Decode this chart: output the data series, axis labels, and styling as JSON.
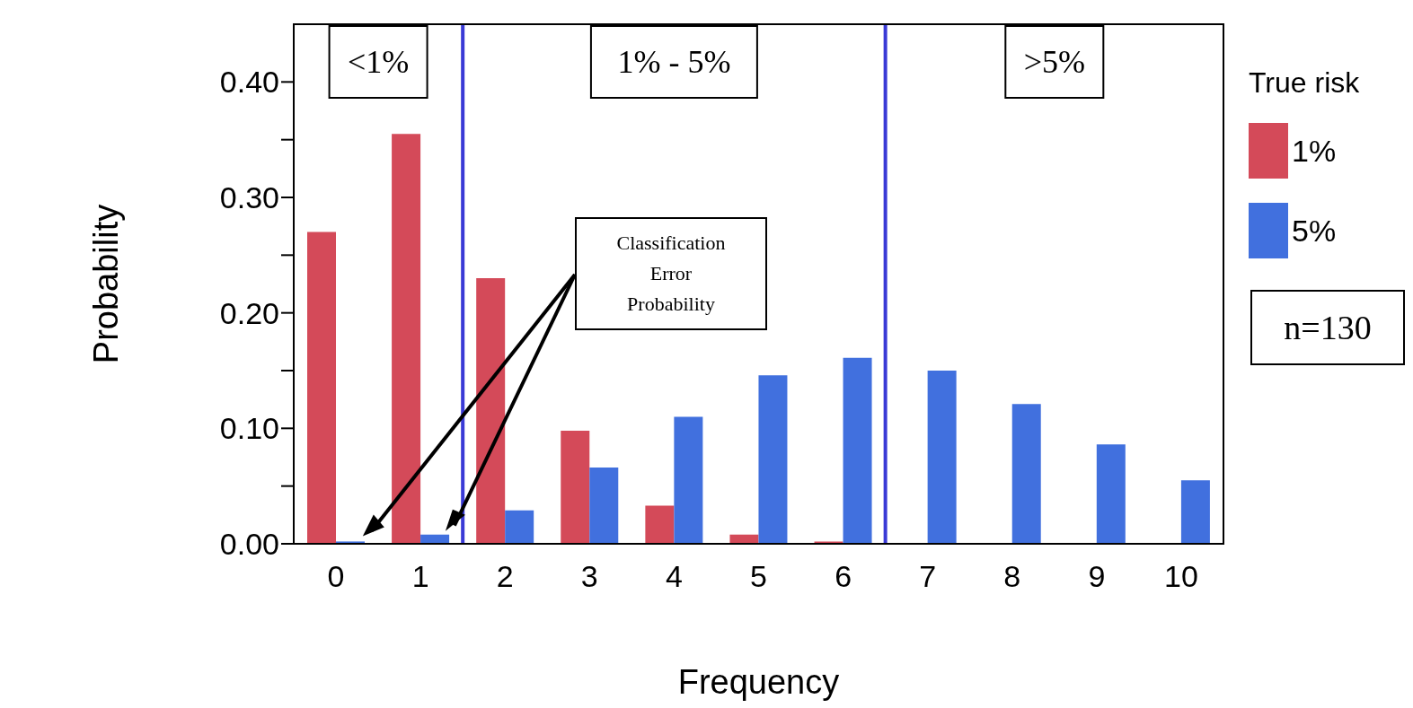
{
  "chart_data": {
    "type": "bar",
    "xlabel": "Frequency",
    "ylabel": "Probability",
    "legend_title": "True risk",
    "legend": "right",
    "x": [
      0,
      1,
      2,
      3,
      4,
      5,
      6,
      7,
      8,
      9,
      10
    ],
    "xlim": [
      -0.5,
      10.5
    ],
    "xticks": [
      0,
      1,
      2,
      3,
      4,
      5,
      6,
      7,
      8,
      9,
      10
    ],
    "ylim": [
      0,
      0.45
    ],
    "yticks": [
      {
        "value": 0,
        "label": "0.00"
      },
      {
        "value": 0.05,
        "label": null
      },
      {
        "value": 0.1,
        "label": "0.10"
      },
      {
        "value": 0.15,
        "label": null
      },
      {
        "value": 0.2,
        "label": "0.20"
      },
      {
        "value": 0.25,
        "label": null
      },
      {
        "value": 0.3,
        "label": "0.30"
      },
      {
        "value": 0.35,
        "label": null
      },
      {
        "value": 0.4,
        "label": "0.40"
      }
    ],
    "series": [
      {
        "name": "1%",
        "color": "#d44a59",
        "values": [
          0.27,
          0.355,
          0.23,
          0.098,
          0.033,
          0.008,
          0.002,
          0,
          0,
          0,
          0
        ]
      },
      {
        "name": "5%",
        "color": "#4170de",
        "values": [
          0.002,
          0.008,
          0.029,
          0.066,
          0.11,
          0.146,
          0.161,
          0.15,
          0.121,
          0.086,
          0.055
        ]
      }
    ],
    "ref_lines": [
      {
        "axis": "x",
        "value": 1.5,
        "color": "#3a3ad6"
      },
      {
        "axis": "x",
        "value": 6.5,
        "color": "#3a3ad6"
      }
    ],
    "annotations": [
      "Classification Error Probability",
      "n=130",
      "<1%",
      "1% - 5%",
      ">5%"
    ]
  }
}
